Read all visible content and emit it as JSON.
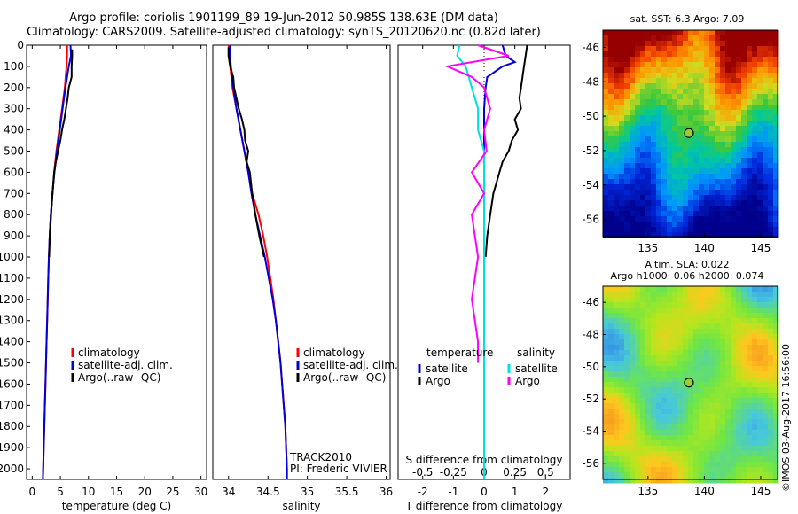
{
  "header": {
    "line1": "Argo profile: coriolis 1901199_89 19-Jun-2012 50.985S 138.63E (DM data)",
    "line2": "Climatology: CARS2009. Satellite-adjusted climatology: synTS_20120620.nc (0.82d later)"
  },
  "map_sst": {
    "title": "sat. SST: 6.3 Argo: 7.09"
  },
  "map_sla": {
    "title_line1": "Altim. SLA: 0.022",
    "title_line2": "Argo h1000: 0.06 h2000: 0.074"
  },
  "stamp": "©IMOS 03-Aug-2017 16:56:00",
  "chart_data": [
    {
      "type": "line",
      "xlabel": "temperature (deg C)",
      "ylabel": "",
      "xlim": [
        -1,
        31
      ],
      "ylim": [
        0,
        2050
      ],
      "y_inverted": true,
      "xticks": [
        "0",
        "5",
        "10",
        "15",
        "20",
        "25",
        "30"
      ],
      "yticks": [
        "0",
        "100",
        "200",
        "300",
        "400",
        "500",
        "600",
        "700",
        "800",
        "900",
        "1000",
        "1100",
        "1200",
        "1300",
        "1400",
        "1500",
        "1600",
        "1700",
        "1800",
        "1900",
        "2000"
      ],
      "legend": "center",
      "series": [
        {
          "name": "climatology",
          "color": "#ff0000",
          "depth": [
            0,
            50,
            100,
            200,
            300,
            400,
            500,
            600,
            700,
            800,
            900,
            1000,
            1100,
            1200,
            1300,
            1400,
            1500,
            1600,
            1700,
            1800,
            1900,
            2000,
            2050
          ],
          "values": [
            6.2,
            6.2,
            6.1,
            5.8,
            5.3,
            4.8,
            4.3,
            3.9,
            3.6,
            3.3,
            3.1,
            2.95,
            2.85,
            2.75,
            2.65,
            2.55,
            2.45,
            2.35,
            2.25,
            2.15,
            2.05,
            1.95,
            1.9
          ]
        },
        {
          "name": "satellite-adj. clim.",
          "color": "#0000dd",
          "depth": [
            0,
            50,
            100,
            200,
            300,
            400,
            500,
            600,
            700,
            800,
            900,
            1000,
            1100,
            1200,
            1300,
            1400,
            1500,
            1600,
            1700,
            1800,
            1900,
            2000,
            2050
          ],
          "values": [
            6.8,
            6.9,
            6.5,
            5.9,
            5.4,
            4.9,
            4.4,
            3.95,
            3.6,
            3.3,
            3.1,
            2.95,
            2.85,
            2.75,
            2.65,
            2.55,
            2.45,
            2.35,
            2.25,
            2.15,
            2.05,
            1.95,
            1.9
          ]
        },
        {
          "name": "Argo(..raw -QC)",
          "color": "#000000",
          "depth": [
            20,
            50,
            100,
            150,
            200,
            250,
            300,
            350,
            400,
            450,
            500,
            550,
            600,
            700,
            800,
            900,
            1000
          ],
          "values": [
            7.1,
            7.1,
            7.0,
            7.0,
            6.5,
            6.3,
            6.0,
            5.7,
            5.3,
            5.0,
            4.6,
            4.2,
            3.9,
            3.6,
            3.35,
            3.15,
            3.0
          ]
        }
      ]
    },
    {
      "type": "line",
      "xlabel": "salinity",
      "xlim": [
        33.8,
        36.05
      ],
      "ylim": [
        0,
        2050
      ],
      "y_inverted": true,
      "xticks": [
        "34",
        "34.5",
        "35",
        "35.5",
        "36"
      ],
      "legend": "center",
      "annotation_line1": "TRACK2010",
      "annotation_line2": "PI: Frederic VIVIER",
      "series": [
        {
          "name": "climatology",
          "color": "#ff0000",
          "depth": [
            0,
            50,
            100,
            200,
            300,
            400,
            500,
            600,
            700,
            800,
            900,
            1000,
            1100,
            1200,
            1300,
            1400,
            1500,
            1600,
            1700,
            1800,
            1900,
            2000,
            2050
          ],
          "values": [
            34.0,
            34.0,
            34.02,
            34.05,
            34.1,
            34.15,
            34.2,
            34.25,
            34.3,
            34.38,
            34.44,
            34.49,
            34.53,
            34.57,
            34.6,
            34.63,
            34.66,
            34.68,
            34.7,
            34.72,
            34.73,
            34.74,
            34.74
          ]
        },
        {
          "name": "satellite-adj. clim.",
          "color": "#0000dd",
          "depth": [
            0,
            50,
            100,
            200,
            300,
            400,
            500,
            600,
            700,
            800,
            900,
            1000,
            1100,
            1200,
            1300,
            1400,
            1500,
            1600,
            1700,
            1800,
            1900,
            2000,
            2050
          ],
          "values": [
            34.02,
            34.02,
            34.03,
            34.06,
            34.1,
            34.15,
            34.2,
            34.25,
            34.29,
            34.34,
            34.4,
            34.46,
            34.51,
            34.56,
            34.6,
            34.63,
            34.66,
            34.68,
            34.7,
            34.72,
            34.73,
            34.74,
            34.74
          ]
        },
        {
          "name": "Argo(..raw -QC)",
          "color": "#000000",
          "depth": [
            10,
            50,
            100,
            150,
            200,
            250,
            300,
            350,
            400,
            450,
            500,
            550,
            600,
            700,
            800,
            900,
            1000
          ],
          "values": [
            34.0,
            34.0,
            34.02,
            34.06,
            34.07,
            34.1,
            34.13,
            34.17,
            34.2,
            34.21,
            34.25,
            34.23,
            34.27,
            34.3,
            34.34,
            34.39,
            34.45
          ]
        }
      ]
    },
    {
      "type": "line",
      "xlabel": "T difference from climatology",
      "xlabel_top": "S difference from climatology",
      "xlim": [
        -2.8,
        2.8
      ],
      "ylim": [
        0,
        2050
      ],
      "y_inverted": true,
      "xticks": [
        "-2",
        "-1",
        "0",
        "1",
        "2"
      ],
      "xticks_top": [
        "-0.5",
        "-0.25",
        "0",
        "0.25",
        "0.5"
      ],
      "legend": "center",
      "legend_headers": [
        "temperature",
        "salinity"
      ],
      "series": [
        {
          "name": "satellite",
          "group": "temperature",
          "color": "#0000dd",
          "depth": [
            0,
            50,
            80,
            100,
            150,
            200,
            300,
            400,
            500,
            600,
            800,
            1000,
            1200,
            1400,
            1600,
            1800,
            2000,
            2050
          ],
          "values": [
            0.6,
            0.7,
            1.0,
            0.6,
            0.1,
            0.05,
            0.0,
            0.0,
            0.0,
            0.0,
            0.0,
            0.0,
            0.0,
            0.0,
            0.0,
            0.0,
            0.0,
            0.0
          ]
        },
        {
          "name": "Argo",
          "group": "temperature",
          "color": "#000000",
          "depth": [
            0,
            50,
            100,
            150,
            200,
            250,
            300,
            350,
            400,
            450,
            500,
            550,
            600,
            650,
            700,
            800,
            900,
            1000
          ],
          "values": [
            1.4,
            1.35,
            1.3,
            1.25,
            1.2,
            1.15,
            1.2,
            1.0,
            1.1,
            0.9,
            0.8,
            0.6,
            0.5,
            0.4,
            0.3,
            0.2,
            0.1,
            0.05
          ]
        },
        {
          "name": "satellite",
          "group": "salinity",
          "color": "#00e0e0",
          "depth": [
            0,
            50,
            100,
            200,
            300,
            400,
            500,
            600,
            800,
            1000,
            1200,
            1400,
            1600,
            1800,
            2000,
            2050
          ],
          "values": [
            -0.2,
            -0.22,
            -0.15,
            -0.1,
            -0.05,
            -0.05,
            0.0,
            0.0,
            0.0,
            0.0,
            0.0,
            0.0,
            0.0,
            0.0,
            0.0,
            0.0
          ]
        },
        {
          "name": "Argo",
          "group": "salinity",
          "color": "#ff00ff",
          "depth": [
            0,
            50,
            100,
            150,
            200,
            300,
            400,
            500,
            600,
            700,
            800,
            1000,
            1200,
            1400,
            1500
          ],
          "values": [
            -0.05,
            0.2,
            -0.3,
            -0.1,
            0.0,
            0.05,
            0.0,
            0.02,
            -0.1,
            0.0,
            -0.1,
            -0.05,
            -0.1,
            -0.05,
            -0.05
          ]
        }
      ]
    },
    {
      "type": "heatmap",
      "title": "sat. SST: 6.3 Argo: 7.09",
      "xlim": [
        131,
        146.5
      ],
      "ylim": [
        -57,
        -45
      ],
      "xticks": [
        "135",
        "140",
        "145"
      ],
      "yticks": [
        "-46",
        "-48",
        "-50",
        "-52",
        "-54",
        "-56"
      ],
      "marker": {
        "lon": 138.63,
        "lat": -50.985
      }
    },
    {
      "type": "heatmap",
      "title": "Altim. SLA: 0.022 / Argo h1000: 0.06 h2000: 0.074",
      "xlim": [
        131,
        146.5
      ],
      "ylim": [
        -57,
        -45
      ],
      "xticks": [
        "135",
        "140",
        "145"
      ],
      "yticks": [
        "-46",
        "-48",
        "-50",
        "-52",
        "-54",
        "-56"
      ],
      "marker": {
        "lon": 138.63,
        "lat": -50.985
      }
    }
  ]
}
